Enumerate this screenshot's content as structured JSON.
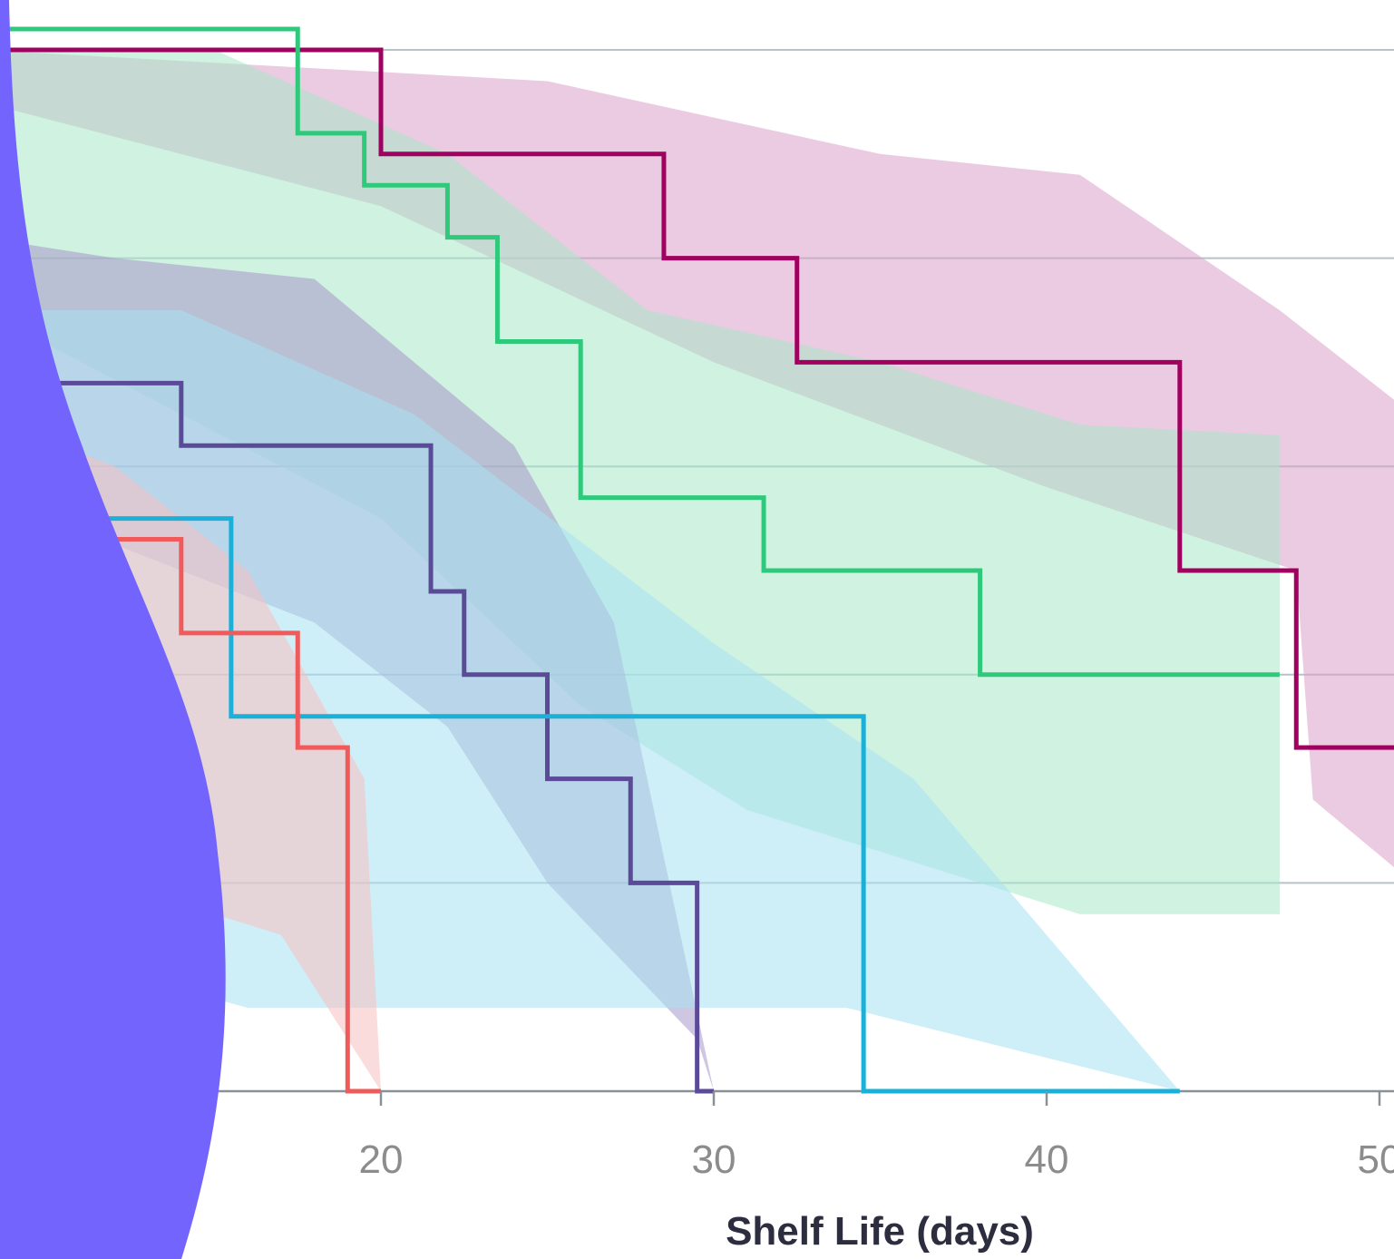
{
  "chart_data": {
    "type": "line",
    "title": "",
    "xlabel": "Shelf Life (days)",
    "ylabel": "",
    "xlim": [
      8,
      51
    ],
    "ylim": [
      0,
      1.05
    ],
    "x_ticks": [
      "20",
      "30",
      "40",
      "50"
    ],
    "grid": true,
    "legend": "none",
    "series": [
      {
        "color": "#a0005f",
        "band_color": "#d9a0c8",
        "x": [
          8,
          20,
          28.5,
          32.5,
          44,
          47.5,
          51
        ],
        "y": [
          1.0,
          0.9,
          0.8,
          0.7,
          0.5,
          0.33,
          0.33
        ],
        "band_upper": [
          [
            8,
            1.0
          ],
          [
            25,
            0.97
          ],
          [
            35,
            0.9
          ],
          [
            41,
            0.88
          ],
          [
            47,
            0.75
          ],
          [
            51,
            0.65
          ]
        ],
        "band_lower": [
          [
            51,
            0.2
          ],
          [
            48,
            0.28
          ],
          [
            47.5,
            0.5
          ],
          [
            40,
            0.58
          ],
          [
            30,
            0.7
          ],
          [
            20,
            0.85
          ],
          [
            8,
            0.95
          ]
        ]
      },
      {
        "color": "#2ec97a",
        "band_color": "#a8e8c8",
        "x": [
          8,
          17.5,
          19.5,
          22,
          23.5,
          26,
          31.5,
          38,
          47
        ],
        "y": [
          1.02,
          0.92,
          0.87,
          0.82,
          0.72,
          0.57,
          0.5,
          0.4,
          0.4
        ],
        "band_upper": [
          [
            8,
            1.0
          ],
          [
            15,
            1.0
          ],
          [
            22,
            0.9
          ],
          [
            28,
            0.75
          ],
          [
            35,
            0.7
          ],
          [
            41,
            0.64
          ],
          [
            47,
            0.63
          ]
        ],
        "band_lower": [
          [
            47,
            0.17
          ],
          [
            41,
            0.17
          ],
          [
            38,
            0.2
          ],
          [
            31,
            0.27
          ],
          [
            26,
            0.37
          ],
          [
            20,
            0.55
          ],
          [
            8,
            0.75
          ]
        ]
      },
      {
        "color": "#5a4a98",
        "band_color": "#a898c8",
        "x": [
          8,
          14,
          21.5,
          22.5,
          25,
          27.5,
          29.5,
          30
        ],
        "y": [
          0.68,
          0.62,
          0.48,
          0.4,
          0.3,
          0.2,
          0.0,
          0.0
        ],
        "band_upper": [
          [
            8,
            0.82
          ],
          [
            12,
            0.8
          ],
          [
            18,
            0.78
          ],
          [
            24,
            0.62
          ],
          [
            27,
            0.45
          ],
          [
            30,
            0.0
          ]
        ],
        "band_lower": [
          [
            30,
            0.0
          ],
          [
            29.5,
            0.05
          ],
          [
            25,
            0.2
          ],
          [
            22,
            0.35
          ],
          [
            18,
            0.45
          ],
          [
            10,
            0.55
          ],
          [
            8,
            0.6
          ]
        ]
      },
      {
        "color": "#1ab0d8",
        "band_color": "#a8e2f2",
        "x": [
          8,
          15.5,
          34.5,
          44
        ],
        "y": [
          0.55,
          0.36,
          0.0,
          0.0
        ],
        "band_upper": [
          [
            8,
            0.75
          ],
          [
            14,
            0.75
          ],
          [
            21,
            0.65
          ],
          [
            30,
            0.43
          ],
          [
            36,
            0.3
          ],
          [
            44,
            0.0
          ]
        ],
        "band_lower": [
          [
            44,
            0.0
          ],
          [
            34,
            0.08
          ],
          [
            28,
            0.08
          ],
          [
            16,
            0.08
          ],
          [
            8,
            0.15
          ]
        ]
      },
      {
        "color": "#f05a5a",
        "band_color": "#f8c0c0",
        "x": [
          8,
          14,
          17.5,
          19,
          20
        ],
        "y": [
          0.53,
          0.44,
          0.33,
          0.0,
          0.0
        ],
        "band_upper": [
          [
            8,
            0.65
          ],
          [
            12,
            0.6
          ],
          [
            16,
            0.5
          ],
          [
            19.5,
            0.3
          ],
          [
            20,
            0.0
          ]
        ],
        "band_lower": [
          [
            20,
            0.0
          ],
          [
            17,
            0.15
          ],
          [
            14,
            0.18
          ],
          [
            10,
            0.2
          ],
          [
            8,
            0.3
          ]
        ]
      }
    ]
  },
  "decor": {
    "blob_color": "#7264fd"
  }
}
